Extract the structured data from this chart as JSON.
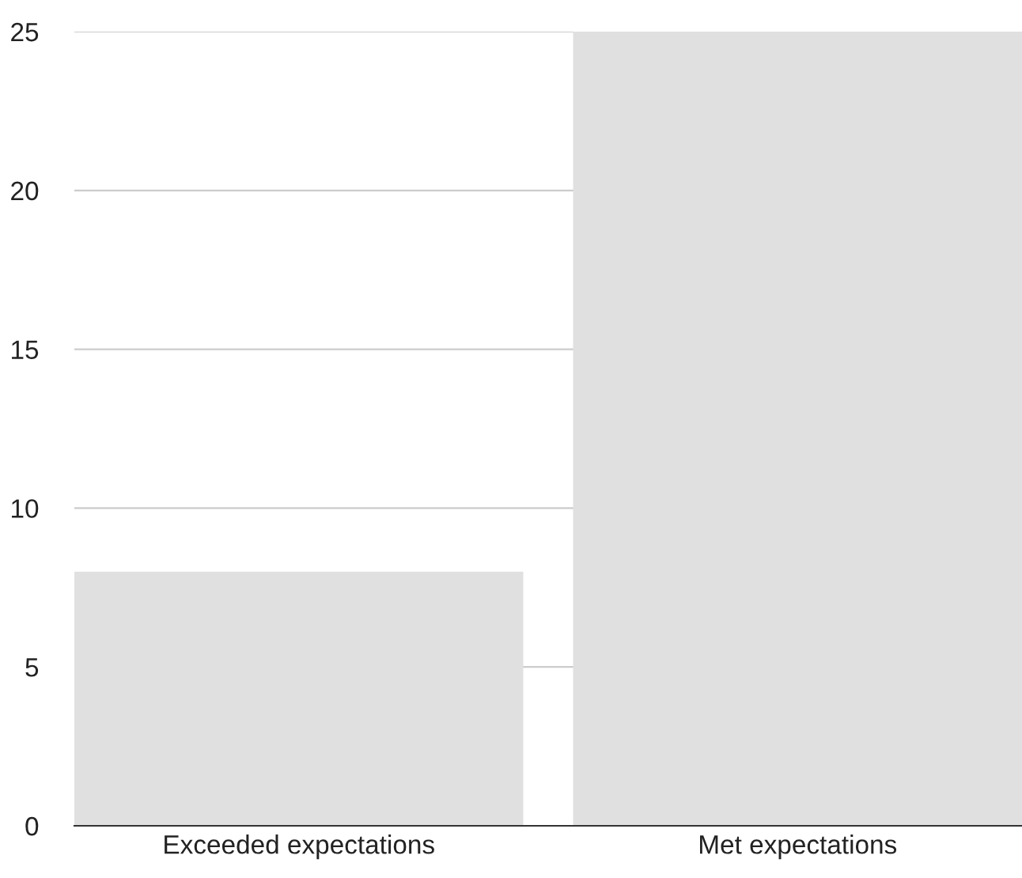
{
  "chart_data": {
    "type": "bar",
    "categories": [
      "Exceeded expectations",
      "Met expectations"
    ],
    "values": [
      8,
      25
    ],
    "color": "#e0e0e0",
    "ylim": [
      0,
      25
    ],
    "yticks": [
      0,
      5,
      10,
      15,
      20,
      25
    ],
    "grid": "y",
    "legend": false
  }
}
